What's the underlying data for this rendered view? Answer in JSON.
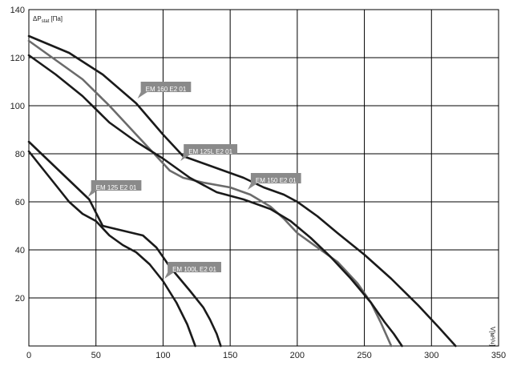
{
  "chart_data": {
    "type": "line",
    "title": "",
    "ylabel": "ΔP",
    "ylabel_sub": "stat",
    "ylabel_unit": "[Па]",
    "xlabel": "V[м³/ч]",
    "xlim": [
      0,
      350
    ],
    "ylim": [
      0,
      140
    ],
    "x_ticks": [
      0,
      50,
      100,
      150,
      200,
      250,
      300,
      350
    ],
    "y_ticks": [
      20,
      40,
      60,
      80,
      100,
      120,
      140
    ],
    "grid": true,
    "colors": {
      "dark": "#1a1a1a",
      "gray": "#6b6b6b",
      "label_bg": "#8a8a8a"
    },
    "series": [
      {
        "name": "EM 160 E2 01",
        "color": "#1a1a1a",
        "x": [
          0,
          30,
          55,
          80,
          100,
          115,
          130,
          145,
          160,
          175,
          190,
          200,
          215,
          230,
          250,
          270,
          290,
          305,
          318
        ],
        "y": [
          129,
          122,
          113,
          101,
          88,
          79,
          76,
          73,
          70,
          66,
          63,
          60,
          54,
          47,
          38,
          28,
          17,
          8,
          0
        ]
      },
      {
        "name": "EM 125L E2 01",
        "color": "#6b6b6b",
        "x": [
          0,
          20,
          40,
          60,
          80,
          95,
          105,
          115,
          130,
          150,
          165,
          180,
          190,
          200,
          215,
          230,
          245,
          255,
          262,
          270
        ],
        "y": [
          127,
          119,
          111,
          100,
          88,
          79,
          73,
          70,
          68,
          66,
          63,
          58,
          53,
          47,
          41,
          35,
          26,
          18,
          10,
          0
        ]
      },
      {
        "name": "EM 150 E2 01",
        "color": "#1a1a1a",
        "x": [
          0,
          20,
          40,
          60,
          80,
          100,
          120,
          140,
          160,
          180,
          195,
          210,
          225,
          240,
          255,
          265,
          272,
          278
        ],
        "y": [
          121,
          113,
          104,
          93,
          85,
          78,
          70,
          64,
          61,
          57,
          52,
          45,
          37,
          28,
          18,
          10,
          5,
          0
        ]
      },
      {
        "name": "EM 125 E2 01",
        "color": "#1a1a1a",
        "x": [
          0,
          15,
          30,
          45,
          55,
          70,
          85,
          95,
          105,
          120,
          130,
          135,
          140,
          143
        ],
        "y": [
          85,
          77,
          69,
          61,
          50,
          48,
          46,
          41,
          33,
          23,
          16,
          11,
          5,
          0
        ]
      },
      {
        "name": "EM 100L E2 01",
        "color": "#1a1a1a",
        "x": [
          0,
          10,
          20,
          30,
          40,
          50,
          60,
          70,
          80,
          90,
          100,
          110,
          118,
          124
        ],
        "y": [
          81,
          74,
          67,
          60,
          55,
          52,
          46,
          42,
          39,
          34,
          27,
          18,
          9,
          0
        ]
      }
    ],
    "annotations": [
      {
        "text": "EM 160 E2 01",
        "at": [
          81,
          103
        ]
      },
      {
        "text": "EM 125L E2 01",
        "at": [
          113,
          77
        ]
      },
      {
        "text": "EM 150 E2 01",
        "at": [
          163,
          65
        ]
      },
      {
        "text": "EM 125 E2 01",
        "at": [
          44,
          62
        ]
      },
      {
        "text": "EM 100L E2 01",
        "at": [
          101,
          28
        ]
      }
    ]
  }
}
